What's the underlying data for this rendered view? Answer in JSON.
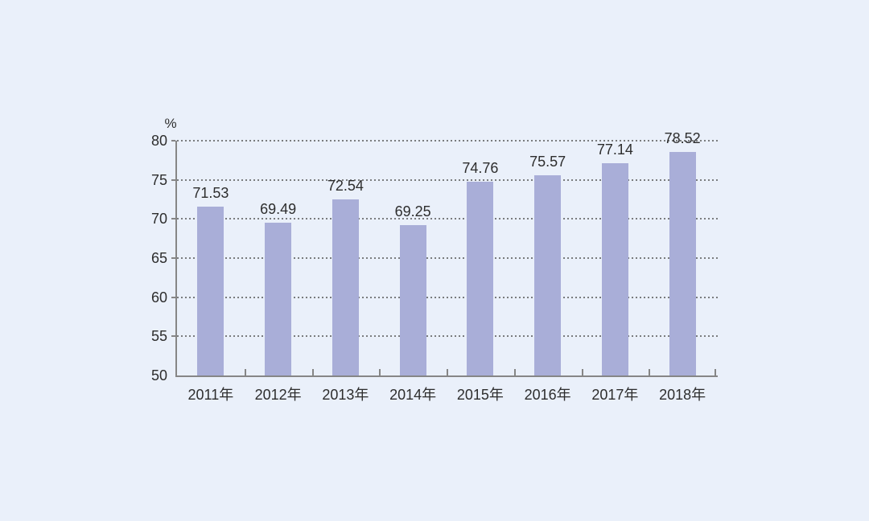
{
  "chart_data": {
    "type": "bar",
    "categories": [
      "2011年",
      "2012年",
      "2013年",
      "2014年",
      "2015年",
      "2016年",
      "2017年",
      "2018年"
    ],
    "values": [
      71.53,
      69.49,
      72.54,
      69.25,
      74.76,
      75.57,
      77.14,
      78.52
    ],
    "value_labels": [
      "71.53",
      "69.49",
      "72.54",
      "69.25",
      "74.76",
      "75.57",
      "77.14",
      "78.52"
    ],
    "ylabel": "%",
    "xlabel": "",
    "ylim": [
      50,
      80
    ],
    "yticks": [
      50,
      55,
      60,
      65,
      70,
      75,
      80
    ],
    "grid": true,
    "gridline_style": "dotted",
    "legend_position": "none",
    "colors": {
      "background": "#eaf0fa",
      "bar_fill": "#a9aed8",
      "gridline": "#555555",
      "axis_line": "#868686",
      "text": "#2d2d2d"
    }
  }
}
